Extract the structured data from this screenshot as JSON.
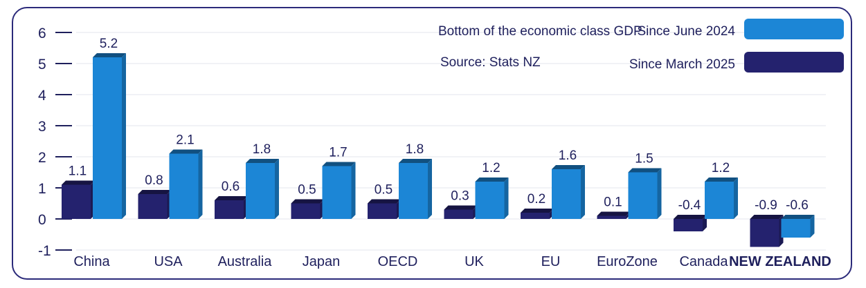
{
  "chart_data": {
    "type": "bar",
    "title": "Bottom of the economic class GDP",
    "subtitle": "Source: Stats NZ",
    "categories": [
      "China",
      "USA",
      "Australia",
      "Japan",
      "OECD",
      "UK",
      "EU",
      "EuroZone",
      "Canada",
      "NEW ZEALAND"
    ],
    "highlight_category": "NEW ZEALAND",
    "series": [
      {
        "name": "Since March 2025",
        "color": "#24226e",
        "values": [
          1.1,
          0.8,
          0.6,
          0.5,
          0.5,
          0.3,
          0.2,
          0.1,
          -0.4,
          -0.9
        ]
      },
      {
        "name": "Since June 2024",
        "color": "#1c86d6",
        "values": [
          5.2,
          2.1,
          1.8,
          1.7,
          1.8,
          1.2,
          1.6,
          1.5,
          1.2,
          -0.6
        ]
      }
    ],
    "y_ticks": [
      "6",
      "5",
      "4",
      "3",
      "2",
      "1",
      "0",
      "-1"
    ],
    "ylim": [
      -1,
      6
    ],
    "legend_position": "top-right",
    "grid": true
  }
}
